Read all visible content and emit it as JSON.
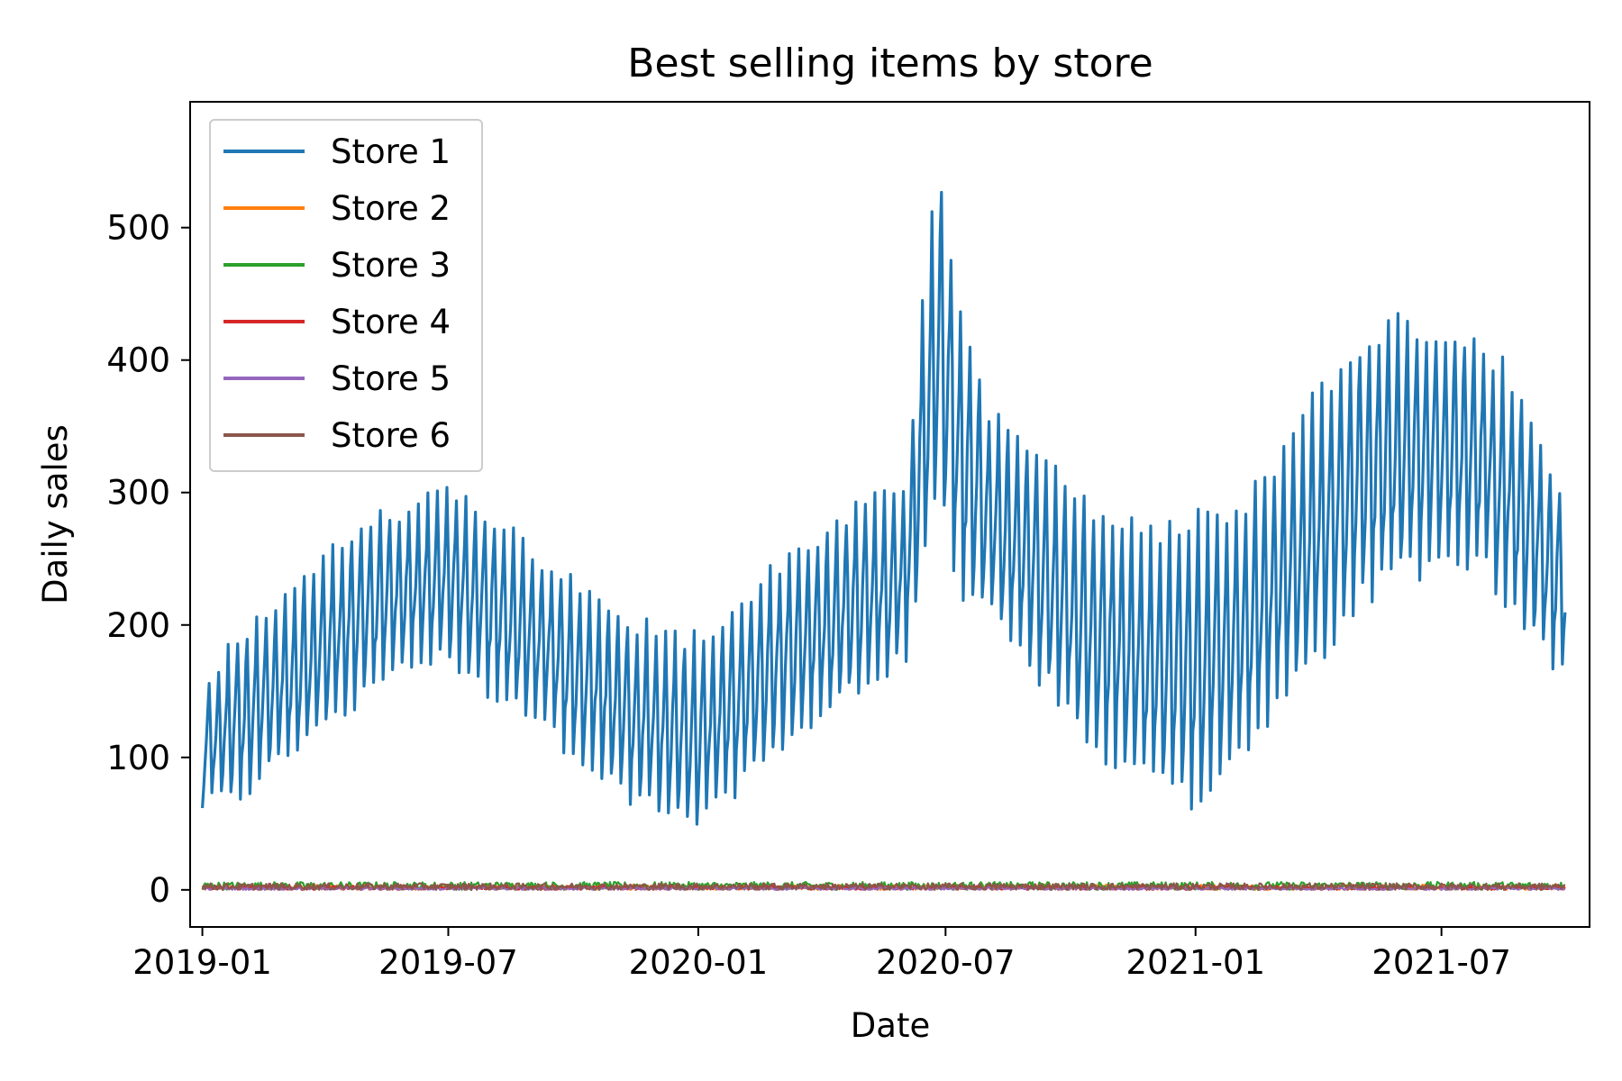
{
  "chart_data": {
    "type": "line",
    "title": "Best selling items by store",
    "xlabel": "Date",
    "ylabel": "Daily sales",
    "x_range": [
      "2018-12-23",
      "2021-10-18"
    ],
    "ylim": [
      -28,
      595
    ],
    "x_ticks": [
      "2019-01",
      "2019-07",
      "2020-01",
      "2020-07",
      "2021-01",
      "2021-07"
    ],
    "y_ticks": [
      0,
      100,
      200,
      300,
      400,
      500
    ],
    "grid": false,
    "legend_position": "top-left",
    "x_start": "2019-01-01",
    "x_end": "2021-09-30",
    "series": [
      {
        "name": "Store 1",
        "color": "#1f77b4",
        "pattern": "weekly",
        "weekly_high": [
          [
            "2019-01-01",
            160
          ],
          [
            "2019-02-01",
            200
          ],
          [
            "2019-03-01",
            225
          ],
          [
            "2019-04-01",
            255
          ],
          [
            "2019-05-01",
            285
          ],
          [
            "2019-06-01",
            290
          ],
          [
            "2019-07-01",
            310
          ],
          [
            "2019-08-01",
            290
          ],
          [
            "2019-09-01",
            260
          ],
          [
            "2019-10-01",
            240
          ],
          [
            "2019-11-01",
            215
          ],
          [
            "2019-12-01",
            200
          ],
          [
            "2020-01-01",
            195
          ],
          [
            "2020-02-01",
            225
          ],
          [
            "2020-03-01",
            250
          ],
          [
            "2020-04-01",
            275
          ],
          [
            "2020-05-01",
            300
          ],
          [
            "2020-06-01",
            310
          ],
          [
            "2020-06-20",
            505
          ],
          [
            "2020-06-26",
            570
          ],
          [
            "2020-07-10",
            460
          ],
          [
            "2020-08-01",
            370
          ],
          [
            "2020-09-01",
            340
          ],
          [
            "2020-10-01",
            310
          ],
          [
            "2020-11-01",
            290
          ],
          [
            "2020-12-01",
            275
          ],
          [
            "2021-01-01",
            285
          ],
          [
            "2021-02-01",
            295
          ],
          [
            "2021-03-01",
            330
          ],
          [
            "2021-04-01",
            380
          ],
          [
            "2021-05-01",
            420
          ],
          [
            "2021-06-01",
            440
          ],
          [
            "2021-07-01",
            430
          ],
          [
            "2021-08-01",
            420
          ],
          [
            "2021-09-01",
            380
          ],
          [
            "2021-09-30",
            300
          ]
        ],
        "weekly_low": [
          [
            "2019-01-01",
            65
          ],
          [
            "2019-02-01",
            75
          ],
          [
            "2019-03-01",
            100
          ],
          [
            "2019-04-01",
            125
          ],
          [
            "2019-05-01",
            150
          ],
          [
            "2019-06-01",
            175
          ],
          [
            "2019-07-01",
            175
          ],
          [
            "2019-08-01",
            150
          ],
          [
            "2019-09-01",
            130
          ],
          [
            "2019-10-01",
            105
          ],
          [
            "2019-11-01",
            80
          ],
          [
            "2019-12-01",
            60
          ],
          [
            "2020-01-01",
            50
          ],
          [
            "2020-02-01",
            80
          ],
          [
            "2020-03-01",
            110
          ],
          [
            "2020-04-01",
            135
          ],
          [
            "2020-05-01",
            155
          ],
          [
            "2020-06-01",
            175
          ],
          [
            "2020-06-26",
            310
          ],
          [
            "2020-07-10",
            225
          ],
          [
            "2020-08-01",
            210
          ],
          [
            "2020-09-01",
            175
          ],
          [
            "2020-10-01",
            130
          ],
          [
            "2020-11-01",
            100
          ],
          [
            "2020-12-01",
            80
          ],
          [
            "2021-01-01",
            70
          ],
          [
            "2021-02-01",
            100
          ],
          [
            "2021-03-01",
            140
          ],
          [
            "2021-04-01",
            175
          ],
          [
            "2021-05-01",
            220
          ],
          [
            "2021-06-01",
            240
          ],
          [
            "2021-07-01",
            250
          ],
          [
            "2021-08-01",
            245
          ],
          [
            "2021-09-01",
            200
          ],
          [
            "2021-09-30",
            160
          ]
        ]
      },
      {
        "name": "Store 2",
        "color": "#ff7f0e",
        "pattern": "noise",
        "range": [
          0,
          4
        ]
      },
      {
        "name": "Store 3",
        "color": "#2ca02c",
        "pattern": "noise",
        "range": [
          0,
          6
        ]
      },
      {
        "name": "Store 4",
        "color": "#d62728",
        "pattern": "noise",
        "range": [
          0,
          3
        ]
      },
      {
        "name": "Store 5",
        "color": "#9467bd",
        "pattern": "noise",
        "range": [
          0,
          2
        ]
      },
      {
        "name": "Store 6",
        "color": "#8c564b",
        "pattern": "noise",
        "range": [
          0,
          5
        ]
      }
    ]
  }
}
